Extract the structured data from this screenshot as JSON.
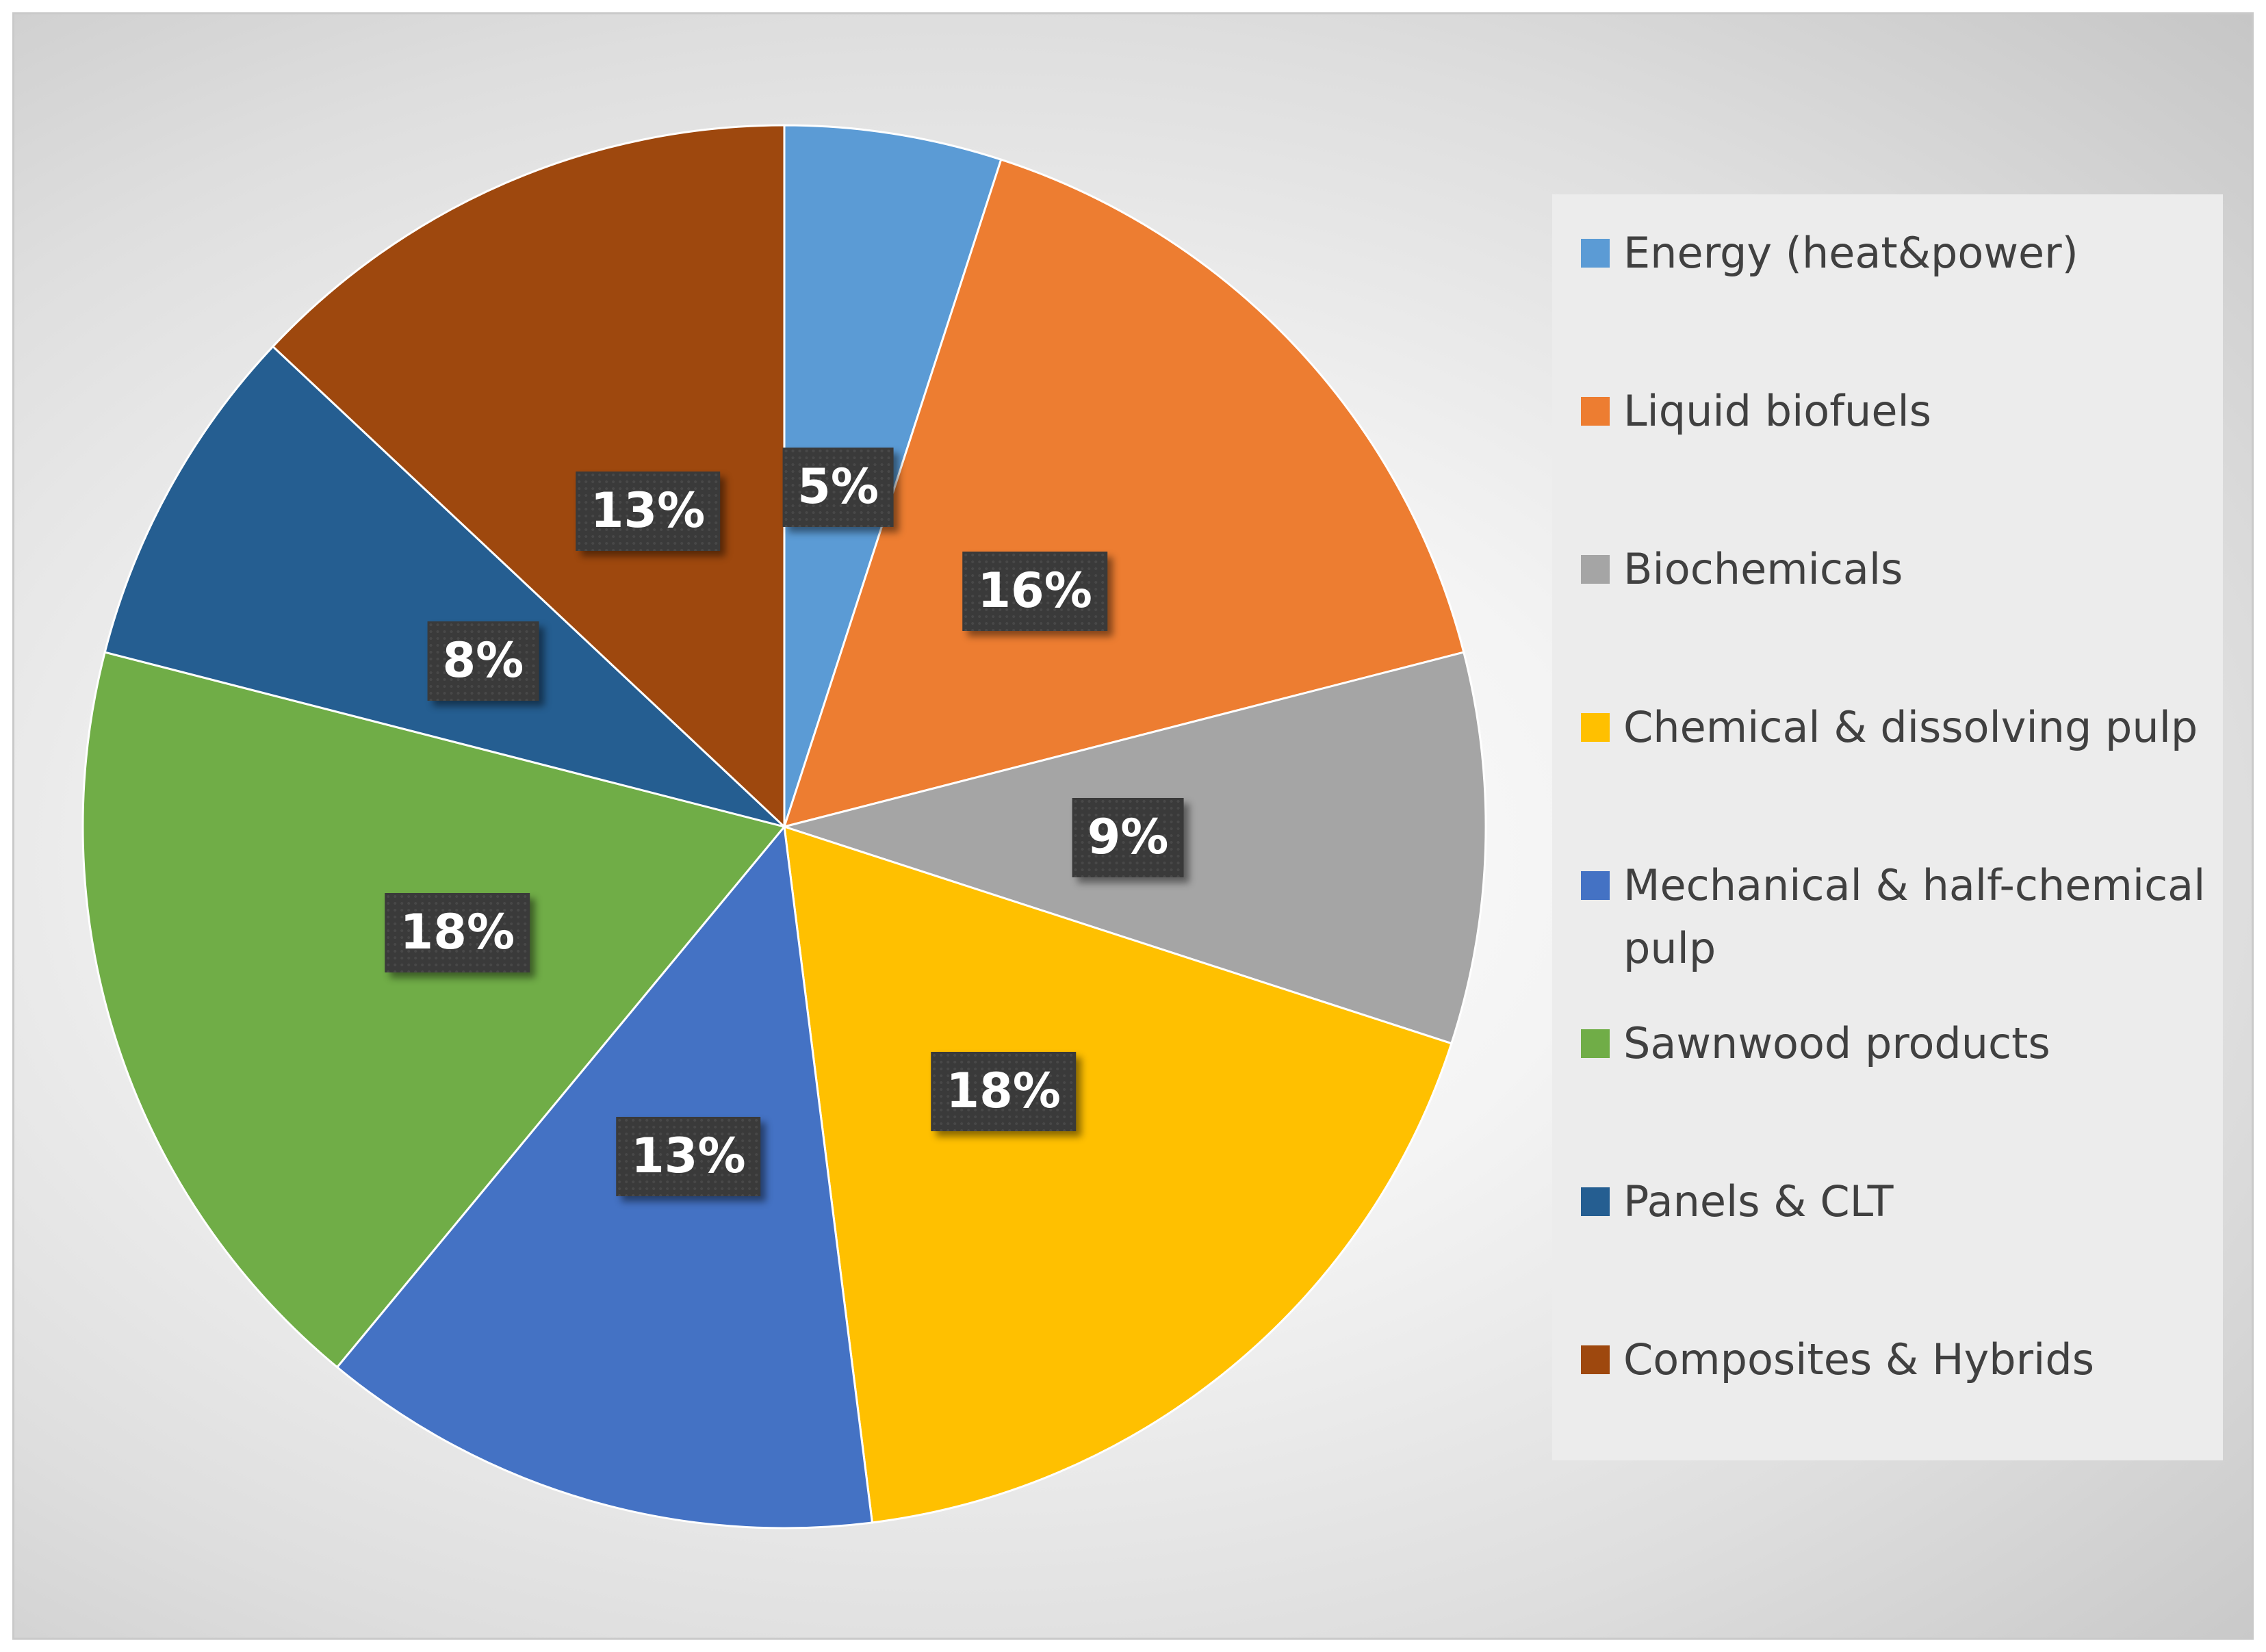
{
  "chart_data": {
    "type": "pie",
    "title": "",
    "start_angle_deg": 0,
    "direction": "clockwise",
    "slices": [
      {
        "name": "Energy (heat&power)",
        "value": 5,
        "label": "5%",
        "color": "#5b9bd5"
      },
      {
        "name": "Liquid biofuels",
        "value": 16,
        "label": "16%",
        "color": "#ed7d31"
      },
      {
        "name": "Biochemicals",
        "value": 9,
        "label": "9%",
        "color": "#a5a5a5"
      },
      {
        "name": "Chemical & dissolving pulp",
        "value": 18,
        "label": "18%",
        "color": "#ffc000"
      },
      {
        "name": "Mechanical & half-chemical pulp",
        "value": 13,
        "label": "13%",
        "color": "#4472c4"
      },
      {
        "name": "Sawnwood products",
        "value": 18,
        "label": "18%",
        "color": "#70ad47"
      },
      {
        "name": "Panels & CLT",
        "value": 8,
        "label": "8%",
        "color": "#255e91"
      },
      {
        "name": "Composites & Hybrids",
        "value": 13,
        "label": "13%",
        "color": "#9e480e"
      }
    ],
    "legend_position": "right"
  }
}
